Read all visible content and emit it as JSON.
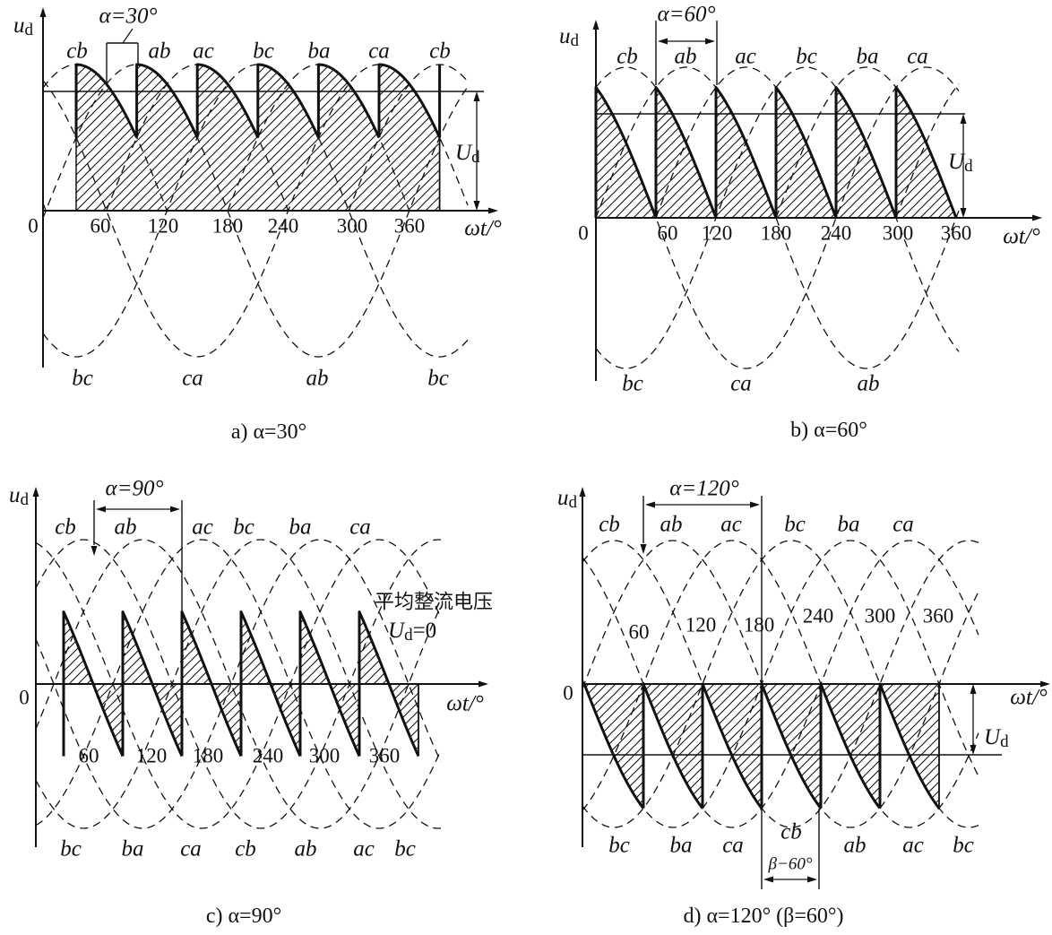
{
  "colors": {
    "line": "#111111",
    "background": "#ffffff"
  },
  "panels": [
    {
      "caption": "a) α=30°",
      "alpha_label": "α=30°",
      "y_axis_label": "u",
      "y_axis_sub": "d",
      "x_axis_label": "ωt/°",
      "origin_label": "0",
      "ticks": [
        "60",
        "120",
        "180",
        "240",
        "300",
        "360"
      ],
      "top_labels": [
        "cb",
        "ab",
        "ac",
        "bc",
        "ba",
        "ca",
        "cb"
      ],
      "bottom_labels": [
        "bc",
        "ca",
        "ab",
        "bc"
      ],
      "ud_label": "U",
      "ud_sub": "d"
    },
    {
      "caption": "b) α=60°",
      "alpha_label": "α=60°",
      "y_axis_label": "u",
      "y_axis_sub": "d",
      "x_axis_label": "ωt/°",
      "origin_label": "0",
      "ticks": [
        "60",
        "120",
        "180",
        "240",
        "300",
        "360"
      ],
      "top_labels": [
        "cb",
        "ab",
        "ac",
        "bc",
        "ba",
        "ca"
      ],
      "bottom_labels": [
        "bc",
        "ca",
        "ab"
      ],
      "ud_label": "U",
      "ud_sub": "d"
    },
    {
      "caption": "c) α=90°",
      "alpha_label": "α=90°",
      "y_axis_label": "u",
      "y_axis_sub": "d",
      "x_axis_label": "ωt/°",
      "origin_label": "0",
      "ticks": [
        "60",
        "120",
        "180",
        "240",
        "300",
        "360"
      ],
      "top_labels": [
        "cb",
        "ab",
        "ac",
        "bc",
        "ba",
        "ca"
      ],
      "bottom_labels": [
        "bc",
        "ba",
        "ca",
        "cb",
        "ab",
        "ac",
        "bc"
      ],
      "note": "平均整流电压",
      "ud_label": "U",
      "ud_sub": "d",
      "ud_value": "=0"
    },
    {
      "caption": "d) α=120° (β=60°)",
      "alpha_label": "α=120°",
      "beta_label": "β−60°",
      "y_axis_label": "u",
      "y_axis_sub": "d",
      "x_axis_label": "ωt/°",
      "origin_label": "0",
      "ticks": [
        "60",
        "120",
        "180",
        "240",
        "300",
        "360"
      ],
      "top_labels": [
        "cb",
        "ab",
        "ac",
        "bc",
        "ba",
        "ca"
      ],
      "bottom_labels": [
        "bc",
        "ba",
        "ca",
        "cb",
        "ab",
        "ac",
        "bc"
      ],
      "ud_label": "U",
      "ud_sub": "d"
    }
  ]
}
